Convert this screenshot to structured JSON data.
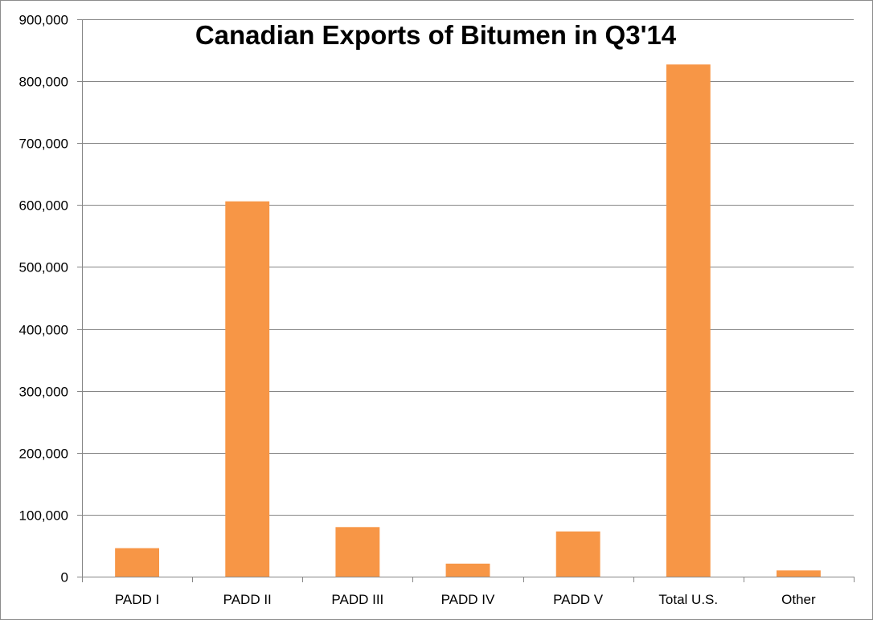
{
  "chart_data": {
    "type": "bar",
    "title": "Canadian Exports of Bitumen in Q3'14",
    "xlabel": "",
    "ylabel": "",
    "categories": [
      "PADD I",
      "PADD II",
      "PADD III",
      "PADD IV",
      "PADD V",
      "Total U.S.",
      "Other"
    ],
    "values": [
      46000,
      606000,
      80000,
      21000,
      73000,
      827000,
      10000
    ],
    "ylim": [
      0,
      900000
    ],
    "yticks": [
      0,
      100000,
      200000,
      300000,
      400000,
      500000,
      600000,
      700000,
      800000,
      900000
    ],
    "ytick_labels": [
      "0",
      "100,000",
      "200,000",
      "300,000",
      "400,000",
      "500,000",
      "600,000",
      "700,000",
      "800,000",
      "900,000"
    ],
    "grid": true,
    "legend": "none",
    "bar_color": "#f79646",
    "grid_color": "#868686"
  }
}
